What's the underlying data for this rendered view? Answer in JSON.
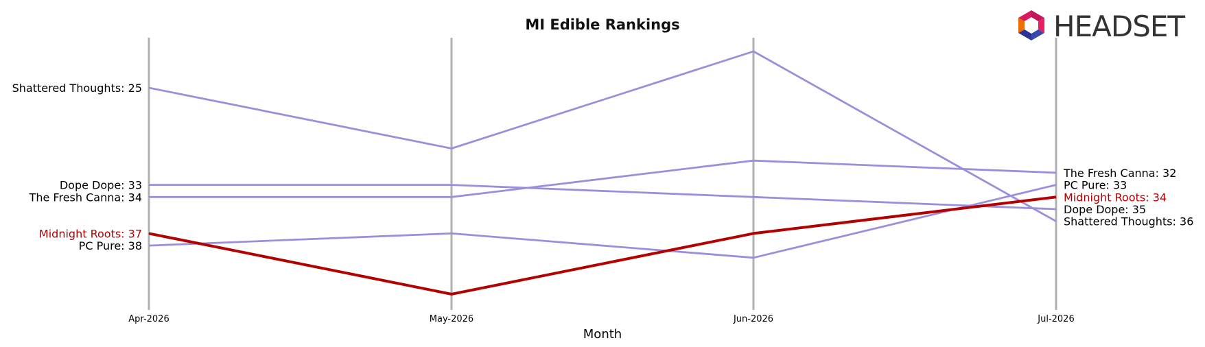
{
  "chart_data": {
    "type": "line",
    "title": "MI Edible Rankings",
    "xlabel": "Month",
    "ylabel": "",
    "x": [
      "Apr-2026",
      "May-2026",
      "Jun-2026",
      "Jul-2026"
    ],
    "y_inverted": true,
    "ylim": [
      22,
      42
    ],
    "grid": "vertical lines at each month",
    "series": [
      {
        "name": "Shattered Thoughts",
        "values": [
          25,
          30,
          22,
          36
        ],
        "color": "#9b8fdb",
        "highlight": false
      },
      {
        "name": "Dope Dope",
        "values": [
          33,
          33,
          34,
          35
        ],
        "color": "#9b8fdb",
        "highlight": false
      },
      {
        "name": "The Fresh Canna",
        "values": [
          34,
          34,
          31,
          32
        ],
        "color": "#9b8fdb",
        "highlight": false
      },
      {
        "name": "Midnight Roots",
        "values": [
          37,
          42,
          37,
          34
        ],
        "color": "#b30000",
        "highlight": true
      },
      {
        "name": "PC Pure",
        "values": [
          38,
          37,
          39,
          33
        ],
        "color": "#9b8fdb",
        "highlight": false
      }
    ],
    "label_text_colors": {
      "default": "#000000",
      "highlight": "#b30000"
    }
  },
  "logo": {
    "text": "HEADSET"
  }
}
